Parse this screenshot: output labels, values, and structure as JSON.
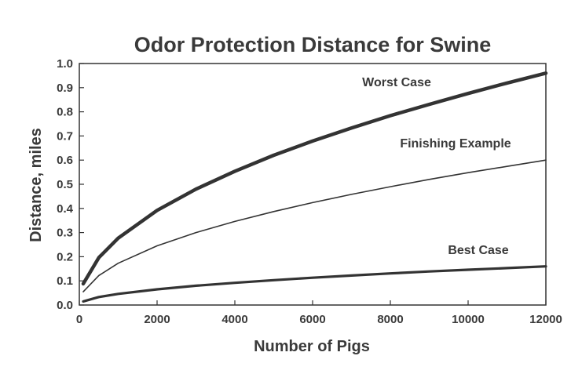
{
  "chart_data": {
    "type": "line",
    "title": "Odor Protection Distance for Swine",
    "xlabel": "Number of Pigs",
    "ylabel": "Distance, miles",
    "xlim": [
      0,
      12000
    ],
    "ylim": [
      0,
      1.0
    ],
    "x_ticks": [
      "0",
      "2000",
      "4000",
      "6000",
      "8000",
      "10000",
      "12000"
    ],
    "y_ticks": [
      "0.0",
      "0.1",
      "0.2",
      "0.3",
      "0.4",
      "0.5",
      "0.6",
      "0.7",
      "0.8",
      "0.9",
      "1.0"
    ],
    "grid": false,
    "legend": "inline labels",
    "series": [
      {
        "name": "Worst Case",
        "color": "#333333",
        "x": [
          100,
          500,
          1000,
          2000,
          3000,
          4000,
          5000,
          6000,
          7000,
          8000,
          9000,
          10000,
          11000,
          12000
        ],
        "y": [
          0.088,
          0.196,
          0.277,
          0.392,
          0.48,
          0.554,
          0.62,
          0.679,
          0.733,
          0.784,
          0.831,
          0.876,
          0.919,
          0.96
        ]
      },
      {
        "name": "Finishing Example",
        "color": "#333333",
        "x": [
          100,
          500,
          1000,
          2000,
          3000,
          4000,
          5000,
          6000,
          7000,
          8000,
          9000,
          10000,
          11000,
          12000
        ],
        "y": [
          0.055,
          0.122,
          0.173,
          0.245,
          0.3,
          0.346,
          0.387,
          0.424,
          0.458,
          0.49,
          0.52,
          0.548,
          0.574,
          0.6
        ]
      },
      {
        "name": "Best Case",
        "color": "#333333",
        "x": [
          100,
          500,
          1000,
          2000,
          3000,
          4000,
          5000,
          6000,
          7000,
          8000,
          9000,
          10000,
          11000,
          12000
        ],
        "y": [
          0.015,
          0.033,
          0.046,
          0.065,
          0.08,
          0.092,
          0.103,
          0.113,
          0.122,
          0.131,
          0.139,
          0.146,
          0.153,
          0.16
        ]
      }
    ]
  }
}
